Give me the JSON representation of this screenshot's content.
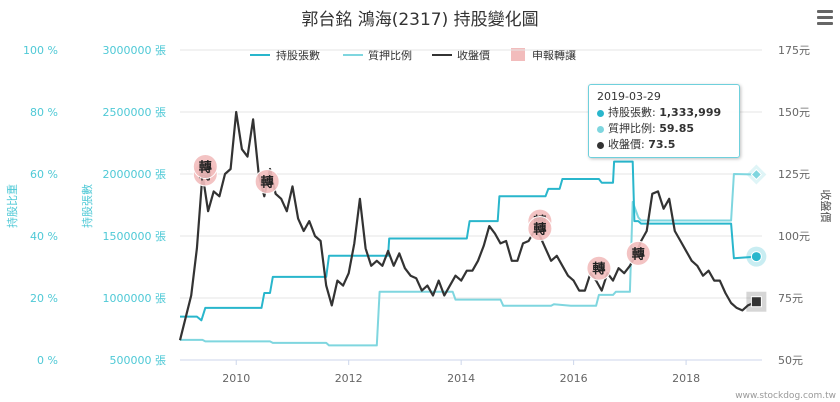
{
  "chart_data": {
    "type": "line",
    "title": "郭台銘 鴻海(2317) 持股變化圖",
    "legend_position": "top-center",
    "grid": true,
    "x_axis": {
      "ticks": [
        "2010",
        "2012",
        "2014",
        "2016",
        "2018"
      ],
      "range": [
        2009.0,
        2019.35
      ]
    },
    "y_axes": {
      "ratio": {
        "label": "持股比重",
        "ticks": [
          "0 %",
          "20 %",
          "40 %",
          "60 %",
          "80 %",
          "100 %"
        ],
        "range": [
          0,
          100
        ]
      },
      "shares": {
        "label": "持股張數",
        "ticks": [
          "500000 張",
          "1000000 張",
          "1500000 張",
          "2000000 張",
          "2500000 張",
          "3000000 張"
        ],
        "range": [
          500000,
          3000000
        ]
      },
      "price": {
        "label": "收盤價",
        "ticks": [
          "50元",
          "75元",
          "100元",
          "125元",
          "150元",
          "175元"
        ],
        "range": [
          50,
          175
        ]
      }
    },
    "series": [
      {
        "name": "持股張數",
        "axis": "shares",
        "color": "#29b6cc",
        "points": [
          [
            2009.0,
            850000
          ],
          [
            2009.3,
            850000
          ],
          [
            2009.38,
            820000
          ],
          [
            2009.45,
            920000
          ],
          [
            2010.45,
            920000
          ],
          [
            2010.5,
            1040000
          ],
          [
            2010.6,
            1040000
          ],
          [
            2010.65,
            1170000
          ],
          [
            2011.6,
            1170000
          ],
          [
            2011.65,
            1340000
          ],
          [
            2012.7,
            1340000
          ],
          [
            2012.72,
            1480000
          ],
          [
            2014.1,
            1480000
          ],
          [
            2014.15,
            1620000
          ],
          [
            2014.65,
            1620000
          ],
          [
            2014.68,
            1820000
          ],
          [
            2015.5,
            1820000
          ],
          [
            2015.55,
            1880000
          ],
          [
            2015.75,
            1880000
          ],
          [
            2015.8,
            1960000
          ],
          [
            2016.45,
            1960000
          ],
          [
            2016.5,
            1930000
          ],
          [
            2016.7,
            1930000
          ],
          [
            2016.72,
            2100000
          ],
          [
            2017.05,
            2100000
          ],
          [
            2017.08,
            1620000
          ],
          [
            2017.15,
            1620000
          ],
          [
            2017.2,
            1600000
          ],
          [
            2018.8,
            1600000
          ],
          [
            2018.85,
            1320000
          ],
          [
            2019.25,
            1333999
          ]
        ]
      },
      {
        "name": "質押比例",
        "axis": "ratio",
        "color": "#7fd6df",
        "points": [
          [
            2009.0,
            6.5
          ],
          [
            2009.4,
            6.5
          ],
          [
            2009.45,
            6.0
          ],
          [
            2010.6,
            6.0
          ],
          [
            2010.65,
            5.5
          ],
          [
            2011.6,
            5.5
          ],
          [
            2011.65,
            4.7
          ],
          [
            2012.5,
            4.7
          ],
          [
            2012.55,
            22.0
          ],
          [
            2013.85,
            22.0
          ],
          [
            2013.9,
            19.5
          ],
          [
            2014.7,
            19.5
          ],
          [
            2014.75,
            17.5
          ],
          [
            2015.6,
            17.5
          ],
          [
            2015.65,
            18.0
          ],
          [
            2015.95,
            17.5
          ],
          [
            2016.4,
            17.5
          ],
          [
            2016.45,
            21.0
          ],
          [
            2016.7,
            21.0
          ],
          [
            2016.75,
            22.0
          ],
          [
            2017.0,
            22.0
          ],
          [
            2017.05,
            51.0
          ],
          [
            2017.15,
            46.0
          ],
          [
            2017.2,
            45.0
          ],
          [
            2018.8,
            45.0
          ],
          [
            2018.85,
            60.0
          ],
          [
            2019.25,
            59.85
          ]
        ]
      },
      {
        "name": "收盤價",
        "axis": "price",
        "color": "#333333",
        "points": [
          [
            2009.0,
            58
          ],
          [
            2009.1,
            67
          ],
          [
            2009.2,
            76
          ],
          [
            2009.3,
            95
          ],
          [
            2009.4,
            125
          ],
          [
            2009.5,
            110
          ],
          [
            2009.6,
            118
          ],
          [
            2009.7,
            116
          ],
          [
            2009.8,
            125
          ],
          [
            2009.9,
            127
          ],
          [
            2010.0,
            150
          ],
          [
            2010.1,
            135
          ],
          [
            2010.2,
            132
          ],
          [
            2010.3,
            147
          ],
          [
            2010.4,
            125
          ],
          [
            2010.5,
            116
          ],
          [
            2010.6,
            127
          ],
          [
            2010.7,
            117
          ],
          [
            2010.8,
            115
          ],
          [
            2010.9,
            110
          ],
          [
            2011.0,
            120
          ],
          [
            2011.1,
            107
          ],
          [
            2011.2,
            102
          ],
          [
            2011.3,
            106
          ],
          [
            2011.4,
            100
          ],
          [
            2011.5,
            98
          ],
          [
            2011.6,
            80
          ],
          [
            2011.7,
            72
          ],
          [
            2011.8,
            82
          ],
          [
            2011.9,
            80
          ],
          [
            2012.0,
            85
          ],
          [
            2012.1,
            97
          ],
          [
            2012.2,
            115
          ],
          [
            2012.3,
            95
          ],
          [
            2012.4,
            88
          ],
          [
            2012.5,
            90
          ],
          [
            2012.6,
            88
          ],
          [
            2012.7,
            94
          ],
          [
            2012.8,
            88
          ],
          [
            2012.9,
            93
          ],
          [
            2013.0,
            87
          ],
          [
            2013.1,
            84
          ],
          [
            2013.2,
            83
          ],
          [
            2013.3,
            78
          ],
          [
            2013.4,
            80
          ],
          [
            2013.5,
            76
          ],
          [
            2013.6,
            82
          ],
          [
            2013.7,
            76
          ],
          [
            2013.8,
            80
          ],
          [
            2013.9,
            84
          ],
          [
            2014.0,
            82
          ],
          [
            2014.1,
            86
          ],
          [
            2014.2,
            86
          ],
          [
            2014.3,
            90
          ],
          [
            2014.4,
            96
          ],
          [
            2014.5,
            104
          ],
          [
            2014.6,
            101
          ],
          [
            2014.7,
            97
          ],
          [
            2014.8,
            98
          ],
          [
            2014.9,
            90
          ],
          [
            2015.0,
            90
          ],
          [
            2015.1,
            97
          ],
          [
            2015.2,
            98
          ],
          [
            2015.3,
            102
          ],
          [
            2015.4,
            100
          ],
          [
            2015.5,
            95
          ],
          [
            2015.6,
            90
          ],
          [
            2015.7,
            92
          ],
          [
            2015.8,
            88
          ],
          [
            2015.9,
            84
          ],
          [
            2016.0,
            82
          ],
          [
            2016.1,
            78
          ],
          [
            2016.2,
            78
          ],
          [
            2016.3,
            85
          ],
          [
            2016.4,
            82
          ],
          [
            2016.5,
            78
          ],
          [
            2016.6,
            85
          ],
          [
            2016.7,
            82
          ],
          [
            2016.8,
            87
          ],
          [
            2016.9,
            85
          ],
          [
            2017.0,
            88
          ],
          [
            2017.1,
            92
          ],
          [
            2017.2,
            98
          ],
          [
            2017.3,
            102
          ],
          [
            2017.4,
            117
          ],
          [
            2017.5,
            118
          ],
          [
            2017.6,
            111
          ],
          [
            2017.7,
            115
          ],
          [
            2017.8,
            102
          ],
          [
            2017.9,
            98
          ],
          [
            2018.0,
            94
          ],
          [
            2018.1,
            90
          ],
          [
            2018.2,
            88
          ],
          [
            2018.3,
            84
          ],
          [
            2018.4,
            86
          ],
          [
            2018.5,
            82
          ],
          [
            2018.6,
            82
          ],
          [
            2018.7,
            77
          ],
          [
            2018.8,
            73
          ],
          [
            2018.9,
            71
          ],
          [
            2019.0,
            70
          ],
          [
            2019.1,
            72
          ],
          [
            2019.25,
            73.5
          ]
        ]
      }
    ],
    "transfer_markers": {
      "name": "申報轉讓",
      "label": "轉",
      "points": [
        [
          2009.45,
          125
        ],
        [
          2009.45,
          128
        ],
        [
          2010.55,
          122
        ],
        [
          2015.4,
          106
        ],
        [
          2015.4,
          103
        ],
        [
          2016.45,
          87
        ],
        [
          2017.15,
          93
        ]
      ]
    },
    "highlight": {
      "date": "2019-03-29",
      "x": 2019.25
    }
  },
  "tooltip": {
    "date": "2019-03-29",
    "rows": [
      {
        "label": "持股張數: ",
        "value": "1,333,999",
        "color": "#29b6cc"
      },
      {
        "label": "質押比例: ",
        "value": "59.85",
        "color": "#7fd6df"
      },
      {
        "label": "收盤價: ",
        "value": "73.5",
        "color": "#333333"
      }
    ]
  },
  "credit": "www.stockdog.com.tw",
  "menu_icon": "hamburger-menu-icon"
}
